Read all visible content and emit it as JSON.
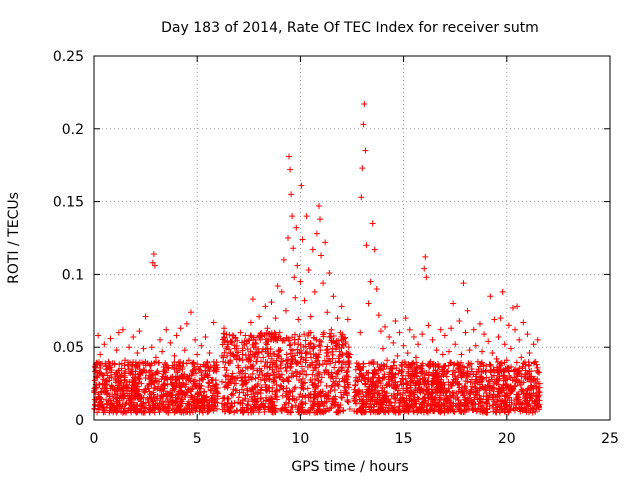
{
  "chart_data": {
    "type": "scatter",
    "title": "Day 183 of 2014, Rate Of TEC Index for receiver sutm",
    "xlabel": "GPS time / hours",
    "ylabel": "ROTI / TECUs",
    "xlim": [
      0,
      25
    ],
    "ylim": [
      0,
      0.25
    ],
    "xticks": [
      0,
      5,
      10,
      15,
      20,
      25
    ],
    "xtick_labels": [
      "0",
      "5",
      "10",
      "15",
      "20",
      "25"
    ],
    "yticks": [
      0,
      0.05,
      0.1,
      0.15,
      0.2,
      0.25
    ],
    "ytick_labels": [
      "0",
      "0.05",
      "0.1",
      "0.15",
      "0.2",
      "0.25"
    ],
    "grid": true,
    "marker": "plus",
    "color": "#ff0000",
    "series": [
      {
        "points": [
          [
            0.0,
            0.02
          ],
          [
            0.1,
            0.034
          ],
          [
            0.2,
            0.058
          ],
          [
            0.3,
            0.045
          ],
          [
            0.4,
            0.031
          ],
          [
            0.5,
            0.052
          ],
          [
            0.6,
            0.027
          ],
          [
            0.7,
            0.04
          ],
          [
            0.8,
            0.056
          ],
          [
            0.9,
            0.022
          ],
          [
            1.0,
            0.038
          ],
          [
            1.1,
            0.048
          ],
          [
            1.2,
            0.06
          ],
          [
            1.3,
            0.03
          ],
          [
            1.4,
            0.062
          ],
          [
            1.5,
            0.041
          ],
          [
            1.6,
            0.026
          ],
          [
            1.7,
            0.05
          ],
          [
            1.8,
            0.035
          ],
          [
            1.9,
            0.057
          ],
          [
            2.0,
            0.029
          ],
          [
            2.1,
            0.046
          ],
          [
            2.2,
            0.061
          ],
          [
            2.3,
            0.033
          ],
          [
            2.4,
            0.049
          ],
          [
            2.5,
            0.071
          ],
          [
            2.6,
            0.039
          ],
          [
            2.7,
            0.025
          ],
          [
            2.8,
            0.05
          ],
          [
            2.85,
            0.108
          ],
          [
            2.9,
            0.114
          ],
          [
            2.95,
            0.106
          ],
          [
            3.0,
            0.043
          ],
          [
            3.1,
            0.032
          ],
          [
            3.2,
            0.055
          ],
          [
            3.3,
            0.047
          ],
          [
            3.4,
            0.028
          ],
          [
            3.5,
            0.062
          ],
          [
            3.6,
            0.036
          ],
          [
            3.7,
            0.053
          ],
          [
            3.8,
            0.024
          ],
          [
            3.9,
            0.044
          ],
          [
            4.0,
            0.058
          ],
          [
            4.1,
            0.037
          ],
          [
            4.2,
            0.063
          ],
          [
            4.3,
            0.03
          ],
          [
            4.4,
            0.048
          ],
          [
            4.5,
            0.066
          ],
          [
            4.6,
            0.041
          ],
          [
            4.7,
            0.074
          ],
          [
            4.8,
            0.033
          ],
          [
            4.9,
            0.055
          ],
          [
            5.0,
            0.045
          ],
          [
            5.1,
            0.027
          ],
          [
            5.2,
            0.051
          ],
          [
            5.3,
            0.038
          ],
          [
            5.4,
            0.057
          ],
          [
            5.5,
            0.031
          ],
          [
            5.6,
            0.046
          ],
          [
            5.8,
            0.067
          ],
          [
            5.9,
            0.035
          ],
          [
            6.0,
            0.022
          ],
          [
            6.2,
            0.044
          ],
          [
            6.3,
            0.063
          ],
          [
            6.4,
            0.03
          ],
          [
            6.5,
            0.052
          ],
          [
            6.6,
            0.041
          ],
          [
            6.7,
            0.058
          ],
          [
            6.8,
            0.025
          ],
          [
            6.9,
            0.049
          ],
          [
            7.0,
            0.036
          ],
          [
            7.1,
            0.06
          ],
          [
            7.2,
            0.045
          ],
          [
            7.3,
            0.029
          ],
          [
            7.4,
            0.054
          ],
          [
            7.5,
            0.04
          ],
          [
            7.6,
            0.067
          ],
          [
            7.7,
            0.083
          ],
          [
            7.8,
            0.05
          ],
          [
            7.9,
            0.034
          ],
          [
            8.0,
            0.071
          ],
          [
            8.1,
            0.058
          ],
          [
            8.2,
            0.043
          ],
          [
            8.3,
            0.078
          ],
          [
            8.4,
            0.063
          ],
          [
            8.5,
            0.036
          ],
          [
            8.6,
            0.081
          ],
          [
            8.7,
            0.055
          ],
          [
            8.8,
            0.07
          ],
          [
            8.9,
            0.092
          ],
          [
            9.0,
            0.06
          ],
          [
            9.1,
            0.088
          ],
          [
            9.2,
            0.11
          ],
          [
            9.3,
            0.075
          ],
          [
            9.4,
            0.125
          ],
          [
            9.45,
            0.181
          ],
          [
            9.5,
            0.172
          ],
          [
            9.55,
            0.155
          ],
          [
            9.6,
            0.14
          ],
          [
            9.65,
            0.118
          ],
          [
            9.7,
            0.098
          ],
          [
            9.75,
            0.084
          ],
          [
            9.8,
            0.132
          ],
          [
            9.85,
            0.106
          ],
          [
            9.9,
            0.069
          ],
          [
            10.0,
            0.095
          ],
          [
            10.05,
            0.161
          ],
          [
            10.1,
            0.124
          ],
          [
            10.2,
            0.082
          ],
          [
            10.3,
            0.14
          ],
          [
            10.4,
            0.103
          ],
          [
            10.5,
            0.071
          ],
          [
            10.6,
            0.117
          ],
          [
            10.7,
            0.088
          ],
          [
            10.8,
            0.128
          ],
          [
            10.9,
            0.147
          ],
          [
            10.95,
            0.138
          ],
          [
            11.0,
            0.113
          ],
          [
            11.1,
            0.094
          ],
          [
            11.2,
            0.122
          ],
          [
            11.3,
            0.074
          ],
          [
            11.4,
            0.101
          ],
          [
            11.5,
            0.062
          ],
          [
            11.6,
            0.085
          ],
          [
            11.7,
            0.053
          ],
          [
            11.8,
            0.07
          ],
          [
            11.9,
            0.047
          ],
          [
            12.0,
            0.078
          ],
          [
            12.1,
            0.056
          ],
          [
            12.2,
            0.038
          ],
          [
            12.3,
            0.069
          ],
          [
            12.4,
            0.045
          ],
          [
            12.9,
            0.06
          ],
          [
            12.95,
            0.153
          ],
          [
            13.0,
            0.173
          ],
          [
            13.05,
            0.203
          ],
          [
            13.1,
            0.217
          ],
          [
            13.15,
            0.185
          ],
          [
            13.2,
            0.12
          ],
          [
            13.3,
            0.08
          ],
          [
            13.4,
            0.095
          ],
          [
            13.5,
            0.135
          ],
          [
            13.6,
            0.117
          ],
          [
            13.7,
            0.09
          ],
          [
            13.8,
            0.072
          ],
          [
            13.9,
            0.061
          ],
          [
            14.0,
            0.049
          ],
          [
            14.1,
            0.064
          ],
          [
            14.2,
            0.041
          ],
          [
            14.3,
            0.057
          ],
          [
            14.4,
            0.035
          ],
          [
            14.5,
            0.053
          ],
          [
            14.6,
            0.068
          ],
          [
            14.7,
            0.044
          ],
          [
            14.8,
            0.06
          ],
          [
            14.9,
            0.033
          ],
          [
            15.0,
            0.051
          ],
          [
            15.1,
            0.07
          ],
          [
            15.2,
            0.046
          ],
          [
            15.3,
            0.062
          ],
          [
            15.4,
            0.038
          ],
          [
            15.5,
            0.057
          ],
          [
            15.6,
            0.043
          ],
          [
            15.7,
            0.052
          ],
          [
            15.8,
            0.036
          ],
          [
            15.9,
            0.059
          ],
          [
            16.0,
            0.104
          ],
          [
            16.05,
            0.112
          ],
          [
            16.1,
            0.098
          ],
          [
            16.2,
            0.065
          ],
          [
            16.3,
            0.04
          ],
          [
            16.4,
            0.055
          ],
          [
            16.5,
            0.03
          ],
          [
            16.6,
            0.048
          ],
          [
            16.7,
            0.037
          ],
          [
            16.8,
            0.062
          ],
          [
            16.9,
            0.045
          ],
          [
            17.0,
            0.058
          ],
          [
            17.1,
            0.033
          ],
          [
            17.2,
            0.047
          ],
          [
            17.3,
            0.063
          ],
          [
            17.4,
            0.08
          ],
          [
            17.5,
            0.052
          ],
          [
            17.6,
            0.039
          ],
          [
            17.7,
            0.068
          ],
          [
            17.8,
            0.045
          ],
          [
            17.9,
            0.094
          ],
          [
            18.0,
            0.06
          ],
          [
            18.1,
            0.075
          ],
          [
            18.2,
            0.048
          ],
          [
            18.3,
            0.035
          ],
          [
            18.4,
            0.062
          ],
          [
            18.5,
            0.051
          ],
          [
            18.6,
            0.04
          ],
          [
            18.7,
            0.066
          ],
          [
            18.8,
            0.047
          ],
          [
            18.9,
            0.059
          ],
          [
            19.0,
            0.037
          ],
          [
            19.1,
            0.054
          ],
          [
            19.2,
            0.085
          ],
          [
            19.3,
            0.046
          ],
          [
            19.4,
            0.069
          ],
          [
            19.5,
            0.042
          ],
          [
            19.6,
            0.057
          ],
          [
            19.7,
            0.07
          ],
          [
            19.8,
            0.088
          ],
          [
            19.9,
            0.052
          ],
          [
            20.0,
            0.041
          ],
          [
            20.1,
            0.065
          ],
          [
            20.2,
            0.049
          ],
          [
            20.3,
            0.077
          ],
          [
            20.4,
            0.062
          ],
          [
            20.5,
            0.078
          ],
          [
            20.6,
            0.055
          ],
          [
            20.7,
            0.043
          ],
          [
            20.8,
            0.067
          ],
          [
            20.9,
            0.038
          ],
          [
            21.0,
            0.059
          ],
          [
            21.1,
            0.046
          ],
          [
            21.2,
            0.03
          ],
          [
            21.3,
            0.052
          ],
          [
            21.4,
            0.04
          ],
          [
            21.5,
            0.055
          ],
          [
            21.6,
            0.025
          ]
        ],
        "dense_segments": [
          [
            0.0,
            6.0,
            0.005,
            0.04
          ],
          [
            6.2,
            12.4,
            0.005,
            0.06
          ],
          [
            12.6,
            21.6,
            0.005,
            0.04
          ]
        ]
      }
    ]
  }
}
